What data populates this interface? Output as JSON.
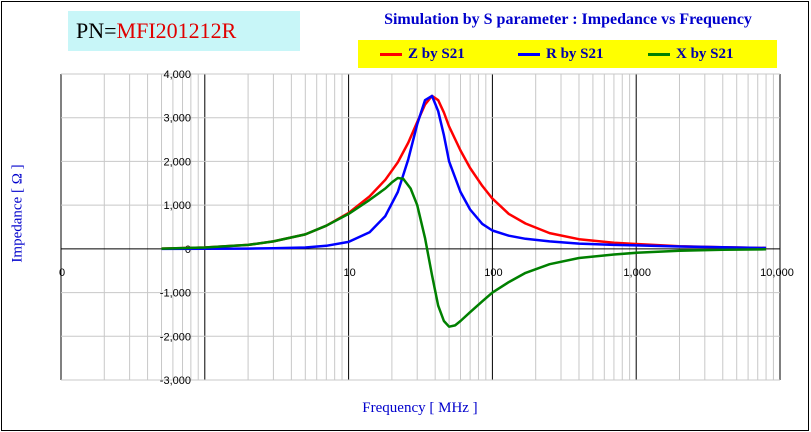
{
  "header": {
    "pn_label": "PN=",
    "pn_value": "MFI201212R"
  },
  "chart_data": {
    "type": "line",
    "title": "Simulation by S parameter : Impedance vs Frequency",
    "xlabel": "Frequency [ MHz ]",
    "ylabel": "Impedance [ Ω ]",
    "x_scale": "log",
    "xlim": [
      0.1,
      10000
    ],
    "ylim": [
      -3000,
      4000
    ],
    "x_ticks": [
      {
        "value": 0.1,
        "label": "0"
      },
      {
        "value": 1,
        "label": ""
      },
      {
        "value": 10,
        "label": "10"
      },
      {
        "value": 100,
        "label": "100"
      },
      {
        "value": 1000,
        "label": "1,000"
      },
      {
        "value": 10000,
        "label": "10,000"
      }
    ],
    "y_ticks": [
      {
        "value": 4000,
        "label": "4,000"
      },
      {
        "value": 3000,
        "label": "3,000"
      },
      {
        "value": 2000,
        "label": "2,000"
      },
      {
        "value": 1000,
        "label": "1,000"
      },
      {
        "value": 0,
        "label": "0"
      },
      {
        "value": -1000,
        "label": "-1,000"
      },
      {
        "value": -2000,
        "label": "-2,000"
      },
      {
        "value": -3000,
        "label": "-3,000"
      }
    ],
    "grid": true,
    "legend_position": "top",
    "series": [
      {
        "name": "Z by S21",
        "color": "#ff0000",
        "x": [
          0.5,
          1,
          2,
          3,
          5,
          7,
          10,
          14,
          18,
          22,
          26,
          30,
          34,
          38,
          42,
          46,
          50,
          60,
          70,
          85,
          100,
          130,
          170,
          250,
          400,
          700,
          1000,
          2000,
          4000,
          8000
        ],
        "y": [
          5,
          30,
          90,
          170,
          330,
          530,
          820,
          1200,
          1580,
          1980,
          2430,
          2900,
          3300,
          3500,
          3400,
          3120,
          2800,
          2250,
          1850,
          1440,
          1150,
          800,
          580,
          360,
          220,
          140,
          110,
          60,
          35,
          20
        ]
      },
      {
        "name": "R by S21",
        "color": "#0000ff",
        "x": [
          0.5,
          1,
          2,
          3,
          5,
          7,
          10,
          14,
          18,
          22,
          26,
          30,
          34,
          38,
          42,
          46,
          50,
          60,
          70,
          85,
          100,
          130,
          170,
          250,
          400,
          700,
          1000,
          2000,
          4000,
          8000
        ],
        "y": [
          0,
          2,
          6,
          12,
          30,
          70,
          160,
          380,
          750,
          1300,
          2050,
          2850,
          3400,
          3500,
          3150,
          2600,
          2000,
          1300,
          900,
          570,
          420,
          300,
          230,
          170,
          120,
          90,
          80,
          55,
          35,
          20
        ]
      },
      {
        "name": "X by S21",
        "color": "#008000",
        "x": [
          0.5,
          1,
          2,
          3,
          5,
          7,
          10,
          14,
          18,
          20,
          22,
          24,
          27,
          30,
          34,
          38,
          42,
          46,
          50,
          55,
          60,
          70,
          85,
          100,
          130,
          170,
          250,
          400,
          700,
          1000,
          2000,
          4000,
          8000
        ],
        "y": [
          5,
          30,
          90,
          170,
          330,
          530,
          800,
          1120,
          1380,
          1520,
          1620,
          1600,
          1380,
          1000,
          250,
          -600,
          -1300,
          -1650,
          -1780,
          -1750,
          -1650,
          -1450,
          -1200,
          -1000,
          -760,
          -550,
          -350,
          -210,
          -130,
          -90,
          -45,
          -20,
          -10
        ]
      }
    ]
  }
}
